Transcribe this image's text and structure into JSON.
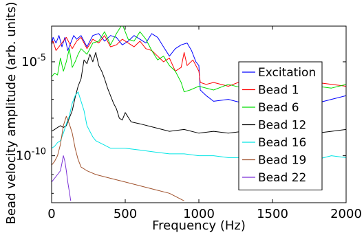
{
  "chart_data": {
    "type": "line",
    "title": "",
    "xlabel": "Frequency (Hz)",
    "ylabel": "Bead velocity amplitude (arb. units)",
    "xlim": [
      0,
      2000
    ],
    "ylog": true,
    "ylim_exp": [
      -12.5,
      -3.1
    ],
    "x_ticks": [
      0,
      500,
      1000,
      1500,
      2000
    ],
    "x_tick_labels": [
      "0",
      "500",
      "1000",
      "1500",
      "2000"
    ],
    "y_ticks": [
      -10,
      -5
    ],
    "y_tick_labels": [
      {
        "base": "10",
        "exp": "-10"
      },
      {
        "base": "10",
        "exp": "-5"
      }
    ],
    "grid": false,
    "legend_position": "right",
    "series": [
      {
        "name": "Excitation",
        "color": "#0000ff",
        "x": [
          0,
          10,
          30,
          50,
          70,
          90,
          110,
          130,
          150,
          170,
          200,
          240,
          280,
          320,
          360,
          400,
          440,
          480,
          520,
          560,
          600,
          640,
          680,
          720,
          760,
          800,
          840,
          880,
          920,
          950,
          980,
          1000,
          1010,
          1050,
          1100,
          1200,
          1300,
          1400,
          1500,
          1600,
          1700,
          1800,
          1900,
          2000
        ],
        "y_exp": [
          -4.1,
          -3.7,
          -4.0,
          -3.6,
          -4.2,
          -3.7,
          -4.4,
          -4.0,
          -3.6,
          -3.8,
          -3.6,
          -4.2,
          -3.6,
          -3.5,
          -3.9,
          -3.6,
          -3.7,
          -4.1,
          -3.9,
          -3.6,
          -3.8,
          -4.0,
          -3.5,
          -3.7,
          -4.2,
          -4.7,
          -4.3,
          -4.1,
          -4.0,
          -4.4,
          -5.0,
          -5.2,
          -6.5,
          -6.8,
          -7.1,
          -7.0,
          -7.2,
          -6.9,
          -7.0,
          -7.1,
          -6.9,
          -7.2,
          -7.0,
          -6.8
        ]
      },
      {
        "name": "Bead 1",
        "color": "#ff0000",
        "x": [
          0,
          10,
          30,
          60,
          100,
          140,
          170,
          200,
          240,
          280,
          320,
          360,
          400,
          440,
          480,
          520,
          560,
          600,
          640,
          680,
          720,
          760,
          800,
          840,
          880,
          900,
          920,
          960,
          1000,
          1010,
          1050,
          1100,
          1200,
          1300,
          1400,
          1500,
          1600,
          1700,
          1800,
          1900,
          2000
        ],
        "y_exp": [
          -4.0,
          -3.9,
          -4.4,
          -4.1,
          -3.7,
          -4.3,
          -3.9,
          -3.7,
          -4.3,
          -3.8,
          -4.0,
          -3.6,
          -4.2,
          -4.1,
          -3.8,
          -4.0,
          -4.2,
          -3.9,
          -4.3,
          -4.4,
          -4.7,
          -5.0,
          -4.8,
          -5.5,
          -5.3,
          -4.5,
          -5.2,
          -4.9,
          -5.5,
          -6.1,
          -6.2,
          -6.1,
          -6.3,
          -6.0,
          -6.1,
          -6.3,
          -6.2,
          -6.0,
          -6.1,
          -6.2,
          -6.3
        ]
      },
      {
        "name": "Bead 6",
        "color": "#00dd00",
        "x": [
          0,
          20,
          40,
          60,
          80,
          100,
          120,
          140,
          160,
          180,
          200,
          240,
          280,
          320,
          360,
          400,
          440,
          480,
          520,
          560,
          600,
          640,
          680,
          720,
          760,
          800,
          840,
          880,
          900,
          940,
          1000,
          1100,
          1200,
          1300,
          1400,
          1500,
          1600,
          1700,
          1800,
          1900,
          2000
        ],
        "y_exp": [
          -5.8,
          -5.6,
          -5.7,
          -4.8,
          -5.5,
          -5.0,
          -4.3,
          -5.3,
          -5.0,
          -4.6,
          -4.3,
          -4.6,
          -4.0,
          -3.9,
          -3.4,
          -4.1,
          -3.5,
          -3.0,
          -3.8,
          -3.9,
          -3.4,
          -3.8,
          -4.4,
          -4.9,
          -4.7,
          -5.2,
          -5.5,
          -6.1,
          -6.6,
          -6.5,
          -6.3,
          -6.5,
          -6.2,
          -6.4,
          -6.2,
          -6.3,
          -6.4,
          -6.2,
          -6.3,
          -6.4,
          -6.2
        ]
      },
      {
        "name": "Bead 12",
        "color": "#000000",
        "x": [
          0,
          20,
          40,
          60,
          80,
          100,
          120,
          140,
          160,
          180,
          200,
          220,
          240,
          260,
          280,
          300,
          320,
          340,
          360,
          380,
          400,
          420,
          440,
          460,
          480,
          500,
          540,
          600,
          700,
          800,
          900,
          1000,
          1100,
          1200,
          1300,
          1400,
          1500,
          1600,
          1700,
          1800,
          1900,
          2000
        ],
        "y_exp": [
          -8.7,
          -8.6,
          -8.5,
          -8.4,
          -8.5,
          -8.4,
          -8.0,
          -7.6,
          -6.9,
          -6.3,
          -5.9,
          -4.9,
          -5.1,
          -4.6,
          -5.0,
          -4.5,
          -5.2,
          -5.5,
          -5.9,
          -6.4,
          -6.8,
          -7.2,
          -7.5,
          -8.0,
          -8.1,
          -7.7,
          -8.2,
          -8.3,
          -8.5,
          -8.7,
          -8.6,
          -8.8,
          -8.7,
          -8.8,
          -8.7,
          -8.9,
          -8.8,
          -8.6,
          -8.7,
          -8.8,
          -8.7,
          -8.6
        ]
      },
      {
        "name": "Bead 16",
        "color": "#00e5e5",
        "x": [
          0,
          20,
          40,
          60,
          80,
          100,
          120,
          140,
          160,
          180,
          200,
          220,
          240,
          260,
          280,
          300,
          350,
          400,
          500,
          600,
          700,
          800,
          900,
          1000,
          1100,
          1200,
          1300,
          1400,
          1500,
          1600,
          1700,
          1800,
          1900,
          2000
        ],
        "y_exp": [
          -9.6,
          -9.5,
          -9.3,
          -9.2,
          -8.8,
          -8.3,
          -7.9,
          -7.2,
          -6.8,
          -6.6,
          -7.1,
          -7.6,
          -8.4,
          -8.7,
          -9.0,
          -9.2,
          -9.4,
          -9.6,
          -9.6,
          -9.7,
          -9.8,
          -9.9,
          -9.9,
          -10.0,
          -10.0,
          -10.1,
          -10.1,
          -10.0,
          -10.1,
          -10.0,
          -10.1,
          -10.2,
          -10.0,
          -10.1
        ]
      },
      {
        "name": "Bead 19",
        "color": "#a0522d",
        "x": [
          0,
          20,
          40,
          60,
          80,
          100,
          120,
          140,
          160,
          180,
          200,
          240,
          300,
          400,
          500,
          600,
          700,
          800,
          900
        ],
        "y_exp": [
          -10.5,
          -10.3,
          -10.0,
          -9.4,
          -8.4,
          -7.9,
          -8.3,
          -8.8,
          -9.6,
          -10.2,
          -10.6,
          -10.8,
          -11.0,
          -11.2,
          -11.4,
          -11.6,
          -11.8,
          -12.0,
          -12.4
        ]
      },
      {
        "name": "Bead 22",
        "color": "#7a2fd6",
        "x": [
          0,
          20,
          40,
          60,
          70,
          80,
          90,
          100,
          110,
          120,
          130
        ],
        "y_exp": [
          -11.4,
          -11.2,
          -11.0,
          -10.8,
          -10.4,
          -10.0,
          -10.3,
          -10.8,
          -11.4,
          -11.9,
          -12.4
        ]
      }
    ]
  }
}
